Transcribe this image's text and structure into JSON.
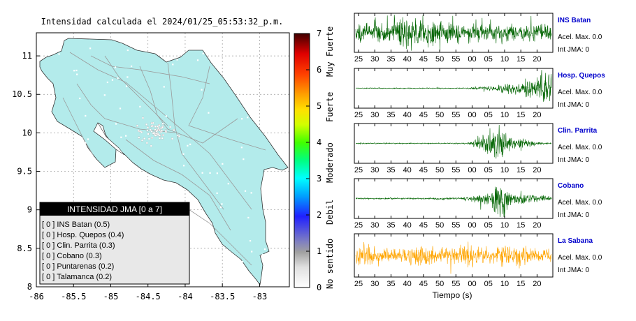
{
  "map": {
    "title": "Intensidad calculada el 2024/01/25_05:53:32_p.m.",
    "x_ticks": [
      "-86",
      "-85.5",
      "-85",
      "-84.5",
      "-84",
      "-83.5",
      "-83"
    ],
    "y_ticks": [
      "8",
      "8.5",
      "9",
      "9.5",
      "10",
      "10.5",
      "11"
    ],
    "xlim": [
      -86,
      -82.6
    ],
    "ylim": [
      8,
      11.3
    ],
    "land_color": "#b3ebeb",
    "legend": {
      "header": "INTENSIDAD JMA [0 a 7]",
      "items": [
        "[ 0 ]  INS Batan (0.5)",
        "[ 0 ]  Hosp. Quepos (0.4)",
        "[ 0 ]  Clin. Parrita (0.3)",
        "[ 0 ]  Cobano (0.3)",
        "[ 0 ]  Puntarenas (0.2)",
        "[ 0 ]  Talamanca (0.2)"
      ]
    }
  },
  "colorbar": {
    "ticks": [
      "0",
      "1",
      "2",
      "3",
      "4",
      "5",
      "6",
      "7"
    ],
    "categories": [
      "No sentido",
      "Debil",
      "Moderado",
      "Fuerte",
      "Muy Fuerte"
    ]
  },
  "chart_data": {
    "type": "line",
    "xlabel": "Tiempo (s)",
    "x_ticks_1": [
      "25",
      "30",
      "35",
      "40",
      "45",
      "50",
      "55",
      "00",
      "05",
      "10",
      "15",
      "20"
    ],
    "x_ticks_2": [
      "25",
      "30",
      "35",
      "40",
      "45",
      "50",
      "55",
      "00",
      "05",
      "10",
      "15",
      "20"
    ],
    "x_ticks_3": [
      "25",
      "30",
      "35",
      "40",
      "45",
      "50",
      "55",
      "00",
      "05",
      "10",
      "15",
      "20"
    ],
    "x_ticks_4": [
      "25",
      "30",
      "35",
      "40",
      "45",
      "50",
      "55",
      "00",
      "05",
      "10",
      "15",
      "20"
    ],
    "x_ticks_5": [
      "25",
      "30",
      "35",
      "40",
      "45",
      "50",
      "55",
      "00",
      "05",
      "10",
      "15",
      "20"
    ],
    "series": [
      {
        "name": "INS Batan",
        "accel": "Acel. Max. 0.0",
        "jma": "Int JMA: 0",
        "color": "#006400"
      },
      {
        "name": "Hosp. Quepos",
        "accel": "Acel. Max. 0.0",
        "jma": "Int JMA: 0",
        "color": "#006400"
      },
      {
        "name": "Clin. Parrita",
        "accel": "Acel. Max. 0.0",
        "jma": "Int JMA: 0",
        "color": "#006400"
      },
      {
        "name": "Cobano",
        "accel": "Acel. Max. 0.0",
        "jma": "Int JMA: 0",
        "color": "#006400"
      },
      {
        "name": "La Sabana",
        "accel": "Acel. Max. 0.0",
        "jma": "Int JMA: 0",
        "color": "#ffa500"
      }
    ],
    "station_label_color": "#0000cc"
  }
}
